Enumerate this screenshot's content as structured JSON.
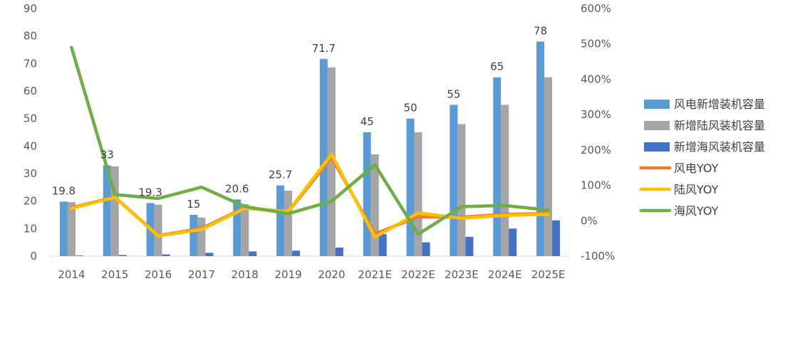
{
  "chart_data": {
    "type": "bar",
    "categories": [
      "2014",
      "2015",
      "2016",
      "2017",
      "2018",
      "2019",
      "2020",
      "2021E",
      "2022E",
      "2023E",
      "2024E",
      "2025E"
    ],
    "series": [
      {
        "name": "风电新增装机容量",
        "kind": "bar",
        "axis": "left",
        "color": "#5B9BD5",
        "values": [
          19.8,
          33,
          19.3,
          15,
          20.6,
          25.7,
          71.7,
          45,
          50,
          55,
          65,
          78
        ]
      },
      {
        "name": "新增陆风装机容量",
        "kind": "bar",
        "axis": "left",
        "color": "#A5A5A5",
        "values": [
          19.6,
          32.6,
          18.7,
          14,
          18.9,
          23.8,
          68.6,
          37,
          45,
          48,
          55,
          65
        ]
      },
      {
        "name": "新增海风装机容量",
        "kind": "bar",
        "axis": "left",
        "color": "#4472C4",
        "values": [
          0.2,
          0.4,
          0.6,
          1.2,
          1.7,
          2.0,
          3.1,
          8,
          5,
          7,
          10,
          13
        ]
      },
      {
        "name": "风电YOY",
        "kind": "line",
        "axis": "right",
        "color": "#ED7D31",
        "values": [
          0.37,
          0.67,
          -0.42,
          -0.22,
          0.37,
          0.25,
          1.79,
          -0.37,
          0.11,
          0.1,
          0.18,
          0.2
        ]
      },
      {
        "name": "陆风YOY",
        "kind": "line",
        "axis": "right",
        "color": "#FFC000",
        "values": [
          0.35,
          0.66,
          -0.43,
          -0.25,
          0.35,
          0.26,
          1.88,
          -0.46,
          0.22,
          0.07,
          0.15,
          0.18
        ]
      },
      {
        "name": "海风YOY",
        "kind": "line",
        "axis": "right",
        "color": "#70AD47",
        "values": [
          4.9,
          0.74,
          0.63,
          0.95,
          0.4,
          0.2,
          0.55,
          1.58,
          -0.38,
          0.4,
          0.43,
          0.3
        ]
      }
    ],
    "data_labels": [
      "19.8",
      "33",
      "19.3",
      "15",
      "20.6",
      "25.7",
      "71.7",
      "45",
      "50",
      "55",
      "65",
      "78"
    ],
    "ylim_left": [
      0,
      90
    ],
    "yticks_left": [
      "0",
      "10",
      "20",
      "30",
      "40",
      "50",
      "60",
      "70",
      "80",
      "90"
    ],
    "ylim_right": [
      -1,
      6
    ],
    "yticks_right": [
      "-100%",
      "0%",
      "100%",
      "200%",
      "300%",
      "400%",
      "500%",
      "600%"
    ],
    "title": "",
    "xlabel": "",
    "ylabel": "",
    "grid": false,
    "legend_position": "right"
  }
}
